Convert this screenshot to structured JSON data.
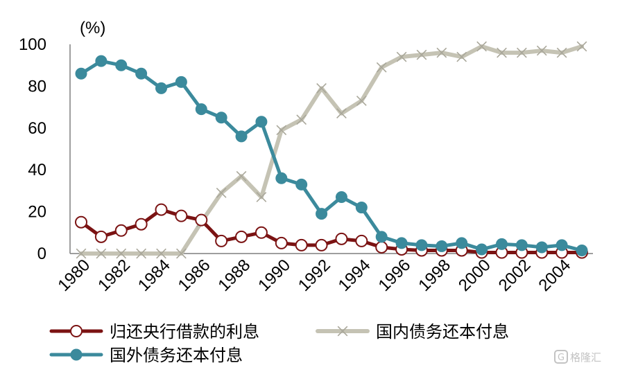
{
  "chart_data": {
    "type": "line",
    "y_unit_label": "(%)",
    "ylim": [
      0,
      100
    ],
    "y_ticks": [
      "0",
      "20",
      "40",
      "60",
      "80",
      "100"
    ],
    "x": [
      1980,
      1981,
      1982,
      1983,
      1984,
      1985,
      1986,
      1987,
      1988,
      1989,
      1990,
      1991,
      1992,
      1993,
      1994,
      1995,
      1996,
      1997,
      1998,
      1999,
      2000,
      2001,
      2002,
      2003,
      2004,
      2005
    ],
    "x_tick_labels": [
      "1980",
      "1982",
      "1984",
      "1986",
      "1988",
      "1990",
      "1992",
      "1994",
      "1996",
      "1998",
      "2000",
      "2002",
      "2004"
    ],
    "grid": false,
    "legend_position": "bottom",
    "series": [
      {
        "name": "归还央行借款的利息",
        "color": "#7b1313",
        "marker": "open-circle",
        "values": [
          15,
          8,
          11,
          14,
          21,
          18,
          16,
          6,
          8,
          10,
          5,
          4,
          4,
          7,
          6,
          3,
          2,
          1.5,
          1.5,
          1.5,
          0.5,
          0.5,
          0.5,
          0.5,
          0.5,
          0.5
        ]
      },
      {
        "name": "国内债务还本付息",
        "color": "#c5c3b4",
        "marker": "x",
        "values": [
          0,
          0,
          0,
          0,
          0,
          0,
          15,
          29,
          37,
          27,
          59,
          64,
          79,
          67,
          73,
          89,
          94,
          95,
          96,
          94,
          99,
          96,
          96,
          97,
          96,
          99
        ]
      },
      {
        "name": "国外债务还本付息",
        "color": "#3b8a9c",
        "marker": "filled-circle",
        "values": [
          86,
          92,
          90,
          86,
          79,
          82,
          69,
          65,
          56,
          63,
          36,
          33,
          19,
          27,
          22,
          8,
          5,
          4,
          3.5,
          5,
          2,
          4.5,
          4,
          3,
          4,
          1.5
        ]
      }
    ]
  },
  "watermark": {
    "icon": "g-logo-icon",
    "text": "格隆汇"
  }
}
